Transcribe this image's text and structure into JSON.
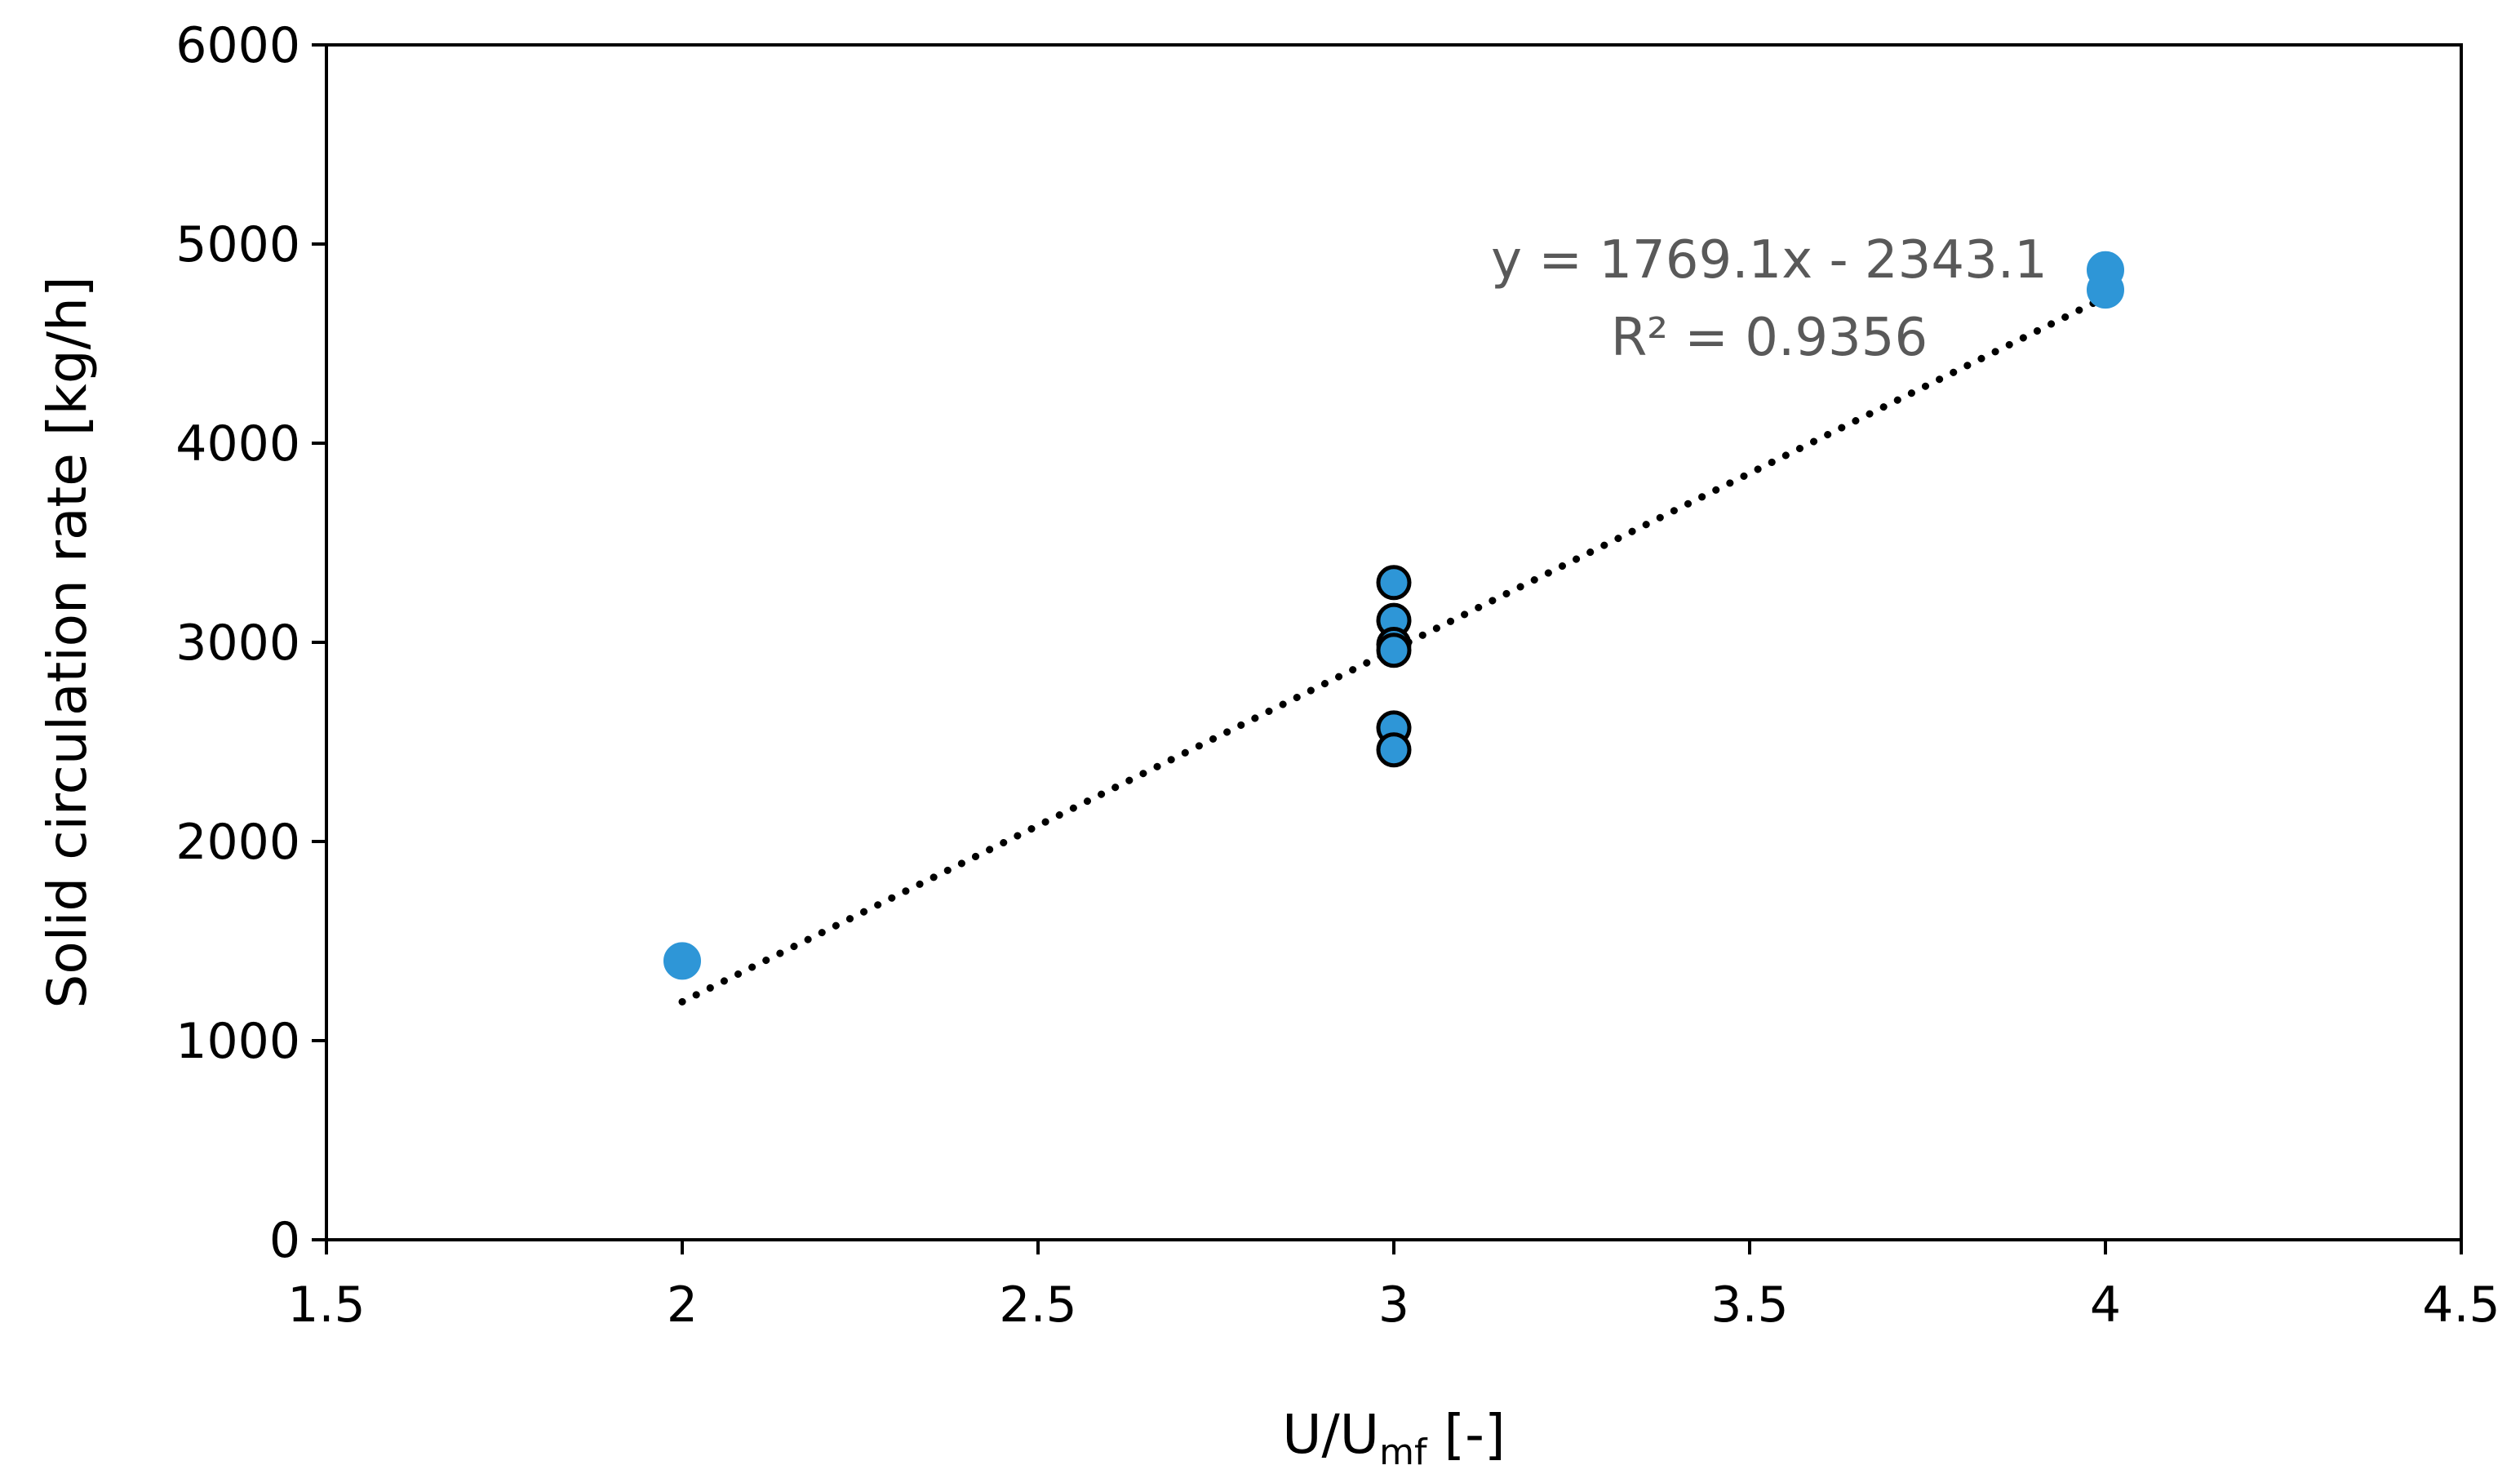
{
  "chart_data": {
    "type": "scatter",
    "xlim": [
      1.5,
      4.5
    ],
    "ylim": [
      0,
      6000
    ],
    "x_ticks": [
      "1.5",
      "2",
      "2.5",
      "3",
      "3.5",
      "4",
      "4.5"
    ],
    "y_ticks": [
      "0",
      "1000",
      "2000",
      "3000",
      "4000",
      "5000",
      "6000"
    ],
    "xlabel_main": "U/U",
    "xlabel_sub": "mf",
    "xlabel_tail": " [-]",
    "ylabel": "Solid circulation rate [kg/h]",
    "grid": false,
    "legend": "none",
    "marker_color": "#2e96d7",
    "points": [
      {
        "x": 2,
        "y": 1400
      },
      {
        "x": 3,
        "y": 3300
      },
      {
        "x": 3,
        "y": 3110
      },
      {
        "x": 3,
        "y": 2990
      },
      {
        "x": 3,
        "y": 2960
      },
      {
        "x": 3,
        "y": 2570
      },
      {
        "x": 3,
        "y": 2460
      },
      {
        "x": 4,
        "y": 4870
      },
      {
        "x": 4,
        "y": 4770
      }
    ],
    "trendline": {
      "type": "linear",
      "style": "dotted",
      "slope": 1769.1,
      "intercept": -2343.1,
      "x_range": [
        2,
        4
      ],
      "equation": "y = 1769.1x - 2343.1",
      "r_squared": "R² = 0.9356"
    }
  }
}
